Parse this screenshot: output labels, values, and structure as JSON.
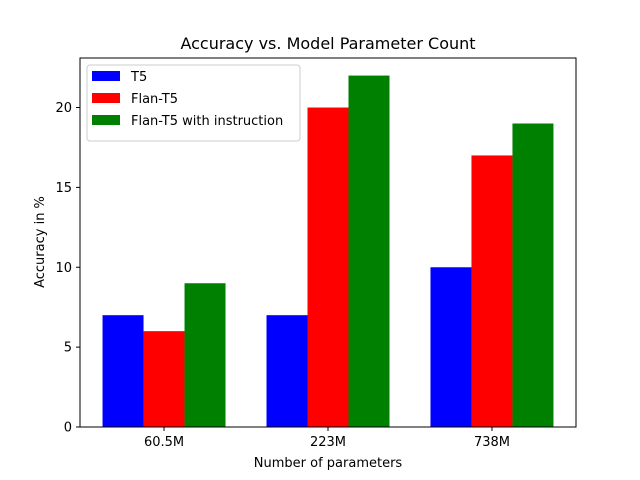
{
  "chart_data": {
    "type": "bar",
    "title": "Accuracy vs. Model Parameter Count",
    "xlabel": "Number of parameters",
    "ylabel": "Accuracy in %",
    "categories": [
      "60.5M",
      "223M",
      "738M"
    ],
    "series": [
      {
        "name": "T5",
        "color": "#0000ff",
        "values": [
          7,
          7,
          10
        ]
      },
      {
        "name": "Flan-T5",
        "color": "#ff0000",
        "values": [
          6,
          20,
          17
        ]
      },
      {
        "name": "Flan-T5 with instruction",
        "color": "#008000",
        "values": [
          9,
          22,
          19
        ]
      }
    ],
    "ylim": [
      0,
      23.1
    ],
    "yticks": [
      0,
      5,
      10,
      15,
      20
    ],
    "grid": false,
    "legend_position": "top-left"
  }
}
